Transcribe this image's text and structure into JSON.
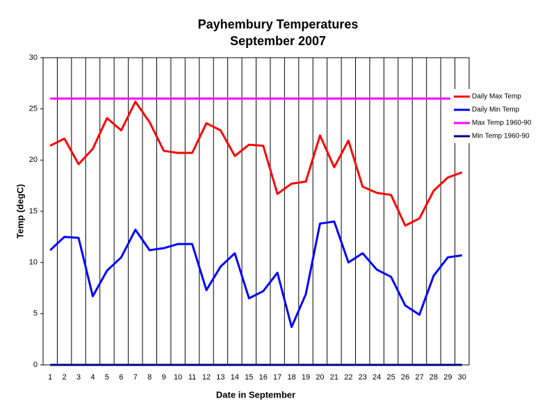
{
  "chart_data": {
    "type": "line",
    "title": "Payhembury Temperatures",
    "subtitle": "September 2007",
    "x_label": "Date in September",
    "y_label": "Temp (degC)",
    "categories": [
      "1",
      "2",
      "3",
      "4",
      "5",
      "6",
      "7",
      "8",
      "9",
      "10",
      "11",
      "12",
      "13",
      "14",
      "15",
      "16",
      "17",
      "18",
      "19",
      "20",
      "21",
      "22",
      "23",
      "24",
      "25",
      "26",
      "27",
      "28",
      "29",
      "30"
    ],
    "series": [
      {
        "name": "Daily Max Temp",
        "color": "#ff0000",
        "values": [
          21.4,
          22.1,
          19.6,
          21.1,
          24.1,
          22.9,
          25.7,
          23.7,
          20.9,
          20.7,
          20.7,
          23.6,
          22.9,
          20.4,
          21.5,
          21.4,
          16.7,
          17.7,
          17.9,
          22.4,
          19.3,
          21.9,
          17.4,
          16.8,
          16.6,
          13.6,
          14.3,
          17.0,
          18.3,
          18.8
        ]
      },
      {
        "name": "Daily Min Temp",
        "color": "#0000ff",
        "values": [
          11.2,
          12.5,
          12.4,
          6.7,
          9.2,
          10.5,
          13.2,
          11.2,
          11.4,
          11.8,
          11.8,
          7.3,
          9.6,
          10.9,
          6.5,
          7.2,
          9.0,
          3.7,
          6.9,
          13.8,
          14.0,
          10.0,
          10.9,
          9.3,
          8.6,
          5.8,
          4.9,
          8.7,
          10.5,
          10.7
        ]
      },
      {
        "name": "Max Temp 1960-90",
        "color": "#ff00ff",
        "values": [
          26,
          26,
          26,
          26,
          26,
          26,
          26,
          26,
          26,
          26,
          26,
          26,
          26,
          26,
          26,
          26,
          26,
          26,
          26,
          26,
          26,
          26,
          26,
          26,
          26,
          26,
          26,
          26,
          26,
          26
        ]
      },
      {
        "name": "Min Temp 1960-90",
        "color": "#000080",
        "values": [
          0,
          0,
          0,
          0,
          0,
          0,
          0,
          0,
          0,
          0,
          0,
          0,
          0,
          0,
          0,
          0,
          0,
          0,
          0,
          0,
          0,
          0,
          0,
          0,
          0,
          0,
          0,
          0,
          0,
          0
        ]
      }
    ],
    "ylim": [
      0,
      30
    ],
    "yticks": [
      0,
      5,
      10,
      15,
      20,
      25,
      30
    ],
    "grid": "x",
    "legend": "right"
  }
}
